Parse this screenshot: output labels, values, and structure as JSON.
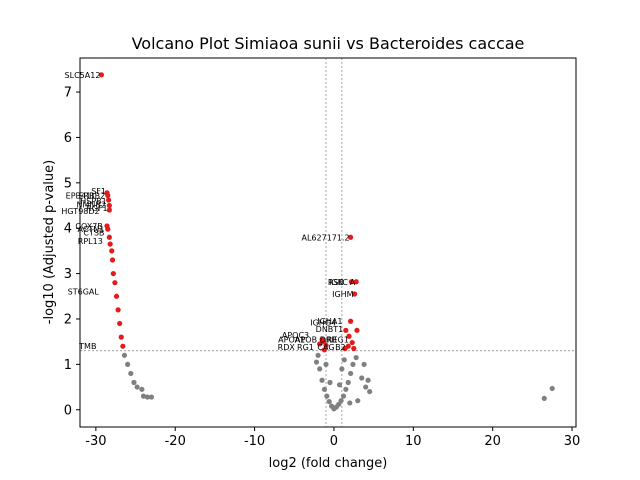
{
  "chart_data": {
    "type": "scatter",
    "title": "Volcano Plot Simiaoa sunii vs Bacteroides caccae",
    "xlabel": "log2 (fold change)",
    "ylabel": "-log10 (Adjusted p-value)",
    "xlim": [
      -32,
      30.5
    ],
    "ylim": [
      -0.38,
      7.75
    ],
    "xticks": [
      -30,
      -20,
      -10,
      0,
      10,
      20,
      30
    ],
    "yticks": [
      0,
      1,
      2,
      3,
      4,
      5,
      6,
      7
    ],
    "significance_threshold_y": 1.3,
    "fold_change_thresholds_x": [
      -1,
      1
    ],
    "colors": {
      "significant": "#e41a1c",
      "not_significant": "#808080",
      "threshold_line": "#808080"
    },
    "grid": false,
    "series": [
      {
        "name": "significant",
        "points": [
          [
            -29.3,
            7.38
          ],
          [
            -28.6,
            4.78
          ],
          [
            -28.5,
            4.72
          ],
          [
            -28.4,
            4.62
          ],
          [
            -28.3,
            4.5
          ],
          [
            -28.3,
            4.4
          ],
          [
            -28.6,
            4.05
          ],
          [
            -28.5,
            3.98
          ],
          [
            -28.3,
            3.8
          ],
          [
            -28.2,
            3.65
          ],
          [
            -28.0,
            3.5
          ],
          [
            -27.9,
            3.3
          ],
          [
            -27.8,
            3.0
          ],
          [
            -27.6,
            2.8
          ],
          [
            -27.4,
            2.5
          ],
          [
            -27.2,
            2.2
          ],
          [
            -27.0,
            1.9
          ],
          [
            -26.8,
            1.6
          ],
          [
            -26.6,
            1.4
          ],
          [
            2.1,
            3.8
          ],
          [
            2.2,
            2.82
          ],
          [
            2.8,
            2.82
          ],
          [
            2.6,
            2.55
          ],
          [
            2.1,
            1.95
          ],
          [
            1.5,
            1.75
          ],
          [
            2.9,
            1.75
          ],
          [
            1.9,
            1.62
          ],
          [
            -1.5,
            1.55
          ],
          [
            -1.3,
            1.5
          ],
          [
            -1.8,
            1.45
          ],
          [
            -1.0,
            1.42
          ],
          [
            2.3,
            1.48
          ],
          [
            1.8,
            1.4
          ],
          [
            2.5,
            1.35
          ],
          [
            1.4,
            1.35
          ],
          [
            -1.2,
            1.32
          ]
        ]
      },
      {
        "name": "not_significant",
        "points": [
          [
            -26.4,
            1.2
          ],
          [
            -26.0,
            1.0
          ],
          [
            -25.6,
            0.8
          ],
          [
            -25.2,
            0.6
          ],
          [
            -24.8,
            0.5
          ],
          [
            -24.2,
            0.45
          ],
          [
            -24.0,
            0.3
          ],
          [
            -23.5,
            0.28
          ],
          [
            -23.0,
            0.28
          ],
          [
            26.5,
            0.25
          ],
          [
            27.5,
            0.47
          ],
          [
            -2.0,
            1.2
          ],
          [
            -1.8,
            0.9
          ],
          [
            -1.5,
            0.65
          ],
          [
            -1.2,
            0.45
          ],
          [
            -0.9,
            0.3
          ],
          [
            -0.6,
            0.18
          ],
          [
            -0.3,
            0.08
          ],
          [
            0.0,
            0.02
          ],
          [
            0.3,
            0.06
          ],
          [
            0.6,
            0.12
          ],
          [
            0.9,
            0.2
          ],
          [
            1.2,
            0.3
          ],
          [
            1.5,
            0.45
          ],
          [
            1.8,
            0.6
          ],
          [
            2.1,
            0.8
          ],
          [
            2.4,
            1.0
          ],
          [
            2.8,
            1.15
          ],
          [
            3.5,
            0.7
          ],
          [
            4.0,
            0.5
          ],
          [
            4.5,
            0.4
          ],
          [
            3.0,
            0.2
          ],
          [
            2.0,
            0.15
          ],
          [
            3.8,
            1.0
          ],
          [
            4.3,
            0.65
          ],
          [
            1.0,
            0.9
          ],
          [
            1.3,
            1.1
          ],
          [
            0.7,
            0.55
          ],
          [
            -0.5,
            0.6
          ],
          [
            -1.0,
            1.0
          ],
          [
            -2.2,
            1.05
          ]
        ]
      }
    ],
    "annotations": [
      {
        "text": "SLC5A12",
        "x": -29.3,
        "y": 7.38
      },
      {
        "text": "SF1",
        "x": -28.6,
        "y": 4.82
      },
      {
        "text": "EPB41L",
        "x": -29.9,
        "y": 4.72
      },
      {
        "text": "ERBB2",
        "x": -28.7,
        "y": 4.72
      },
      {
        "text": "HSPB1",
        "x": -28.5,
        "y": 4.6
      },
      {
        "text": "NMNB2",
        "x": -28.6,
        "y": 4.52
      },
      {
        "text": "RGF1",
        "x": -28.4,
        "y": 4.45
      },
      {
        "text": "HGT98D2",
        "x": -29.4,
        "y": 4.38
      },
      {
        "text": "COX7B",
        "x": -29.0,
        "y": 4.05
      },
      {
        "text": "ACTN1",
        "x": -28.8,
        "y": 3.98
      },
      {
        "text": "CTSB",
        "x": -28.8,
        "y": 3.9
      },
      {
        "text": "RPL13",
        "x": -29.0,
        "y": 3.72
      },
      {
        "text": "ST6GAL",
        "x": -29.5,
        "y": 2.6
      },
      {
        "text": "TMB",
        "x": -29.8,
        "y": 1.4
      },
      {
        "text": "AL627171.2",
        "x": 2.1,
        "y": 3.8
      },
      {
        "text": "RSB",
        "x": 1.4,
        "y": 2.82
      },
      {
        "text": "IGKC",
        "x": 1.9,
        "y": 2.82
      },
      {
        "text": "A",
        "x": 2.8,
        "y": 2.82
      },
      {
        "text": "IGHM",
        "x": 2.6,
        "y": 2.55
      },
      {
        "text": "IGHA1",
        "x": 1.2,
        "y": 1.95
      },
      {
        "text": "IGHG4",
        "x": 0.4,
        "y": 1.92
      },
      {
        "text": "DNBT1",
        "x": 1.3,
        "y": 1.78
      },
      {
        "text": "APOC3",
        "x": -3.0,
        "y": 1.65
      },
      {
        "text": "APOA1",
        "x": -3.5,
        "y": 1.55
      },
      {
        "text": "APOB",
        "x": -2.0,
        "y": 1.55
      },
      {
        "text": "DRB",
        "x": 0.5,
        "y": 1.55
      },
      {
        "text": "REG1",
        "x": 2.0,
        "y": 1.55
      },
      {
        "text": "RDX",
        "x": -4.8,
        "y": 1.38
      },
      {
        "text": "RG1",
        "x": -2.4,
        "y": 1.38
      },
      {
        "text": "CAG",
        "x": 0.2,
        "y": 1.38
      },
      {
        "text": "B2",
        "x": 1.6,
        "y": 1.38
      }
    ]
  }
}
